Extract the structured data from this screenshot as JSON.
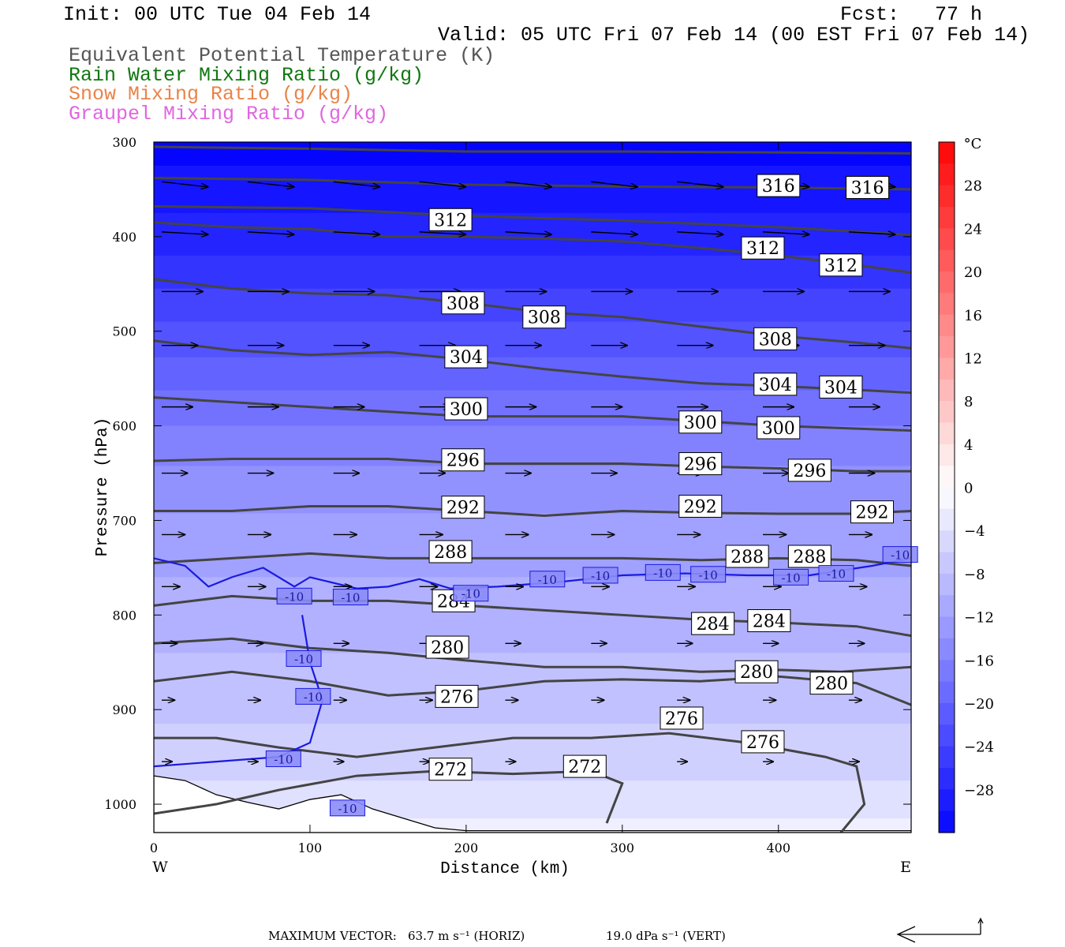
{
  "header": {
    "init": "Init: 00 UTC Tue 04 Feb 14",
    "fcst": "Fcst:   77 h",
    "valid": "Valid: 05 UTC Fri 07 Feb 14 (00 EST Fri 07 Feb 14)",
    "legend": [
      {
        "text": "Equivalent Potential Temperature (K)",
        "color": "#555555"
      },
      {
        "text": "Rain Water Mixing Ratio (g/kg)",
        "color": "#117711"
      },
      {
        "text": "Snow Mixing Ratio (g/kg)",
        "color": "#e8844a"
      },
      {
        "text": "Graupel Mixing Ratio (g/kg)",
        "color": "#e066e0"
      }
    ]
  },
  "chart_data": {
    "type": "heatmap",
    "xlabel": "Distance (km)",
    "ylabel": "Pressure (hPa)",
    "xlim": [
      0,
      485
    ],
    "ylim": [
      1030,
      300
    ],
    "x_ticks": [
      0,
      100,
      200,
      300,
      400
    ],
    "y_ticks": [
      300,
      400,
      500,
      600,
      700,
      800,
      900,
      1000
    ],
    "x_end_labels": {
      "left": "W",
      "right": "E"
    },
    "colorbar": {
      "unit": "°C",
      "tick_labels": [
        28,
        24,
        20,
        16,
        12,
        8,
        4,
        0,
        -4,
        -8,
        -12,
        -16,
        -20,
        -24,
        -28
      ],
      "range": [
        -32,
        32
      ],
      "step": 2
    },
    "temperature_shading": [
      {
        "p": 300,
        "t": -32
      },
      {
        "p": 350,
        "t": -30
      },
      {
        "p": 400,
        "t": -28
      },
      {
        "p": 440,
        "t": -26
      },
      {
        "p": 470,
        "t": -24
      },
      {
        "p": 510,
        "t": -22
      },
      {
        "p": 545,
        "t": -20
      },
      {
        "p": 580,
        "t": -18
      },
      {
        "p": 620,
        "t": -16
      },
      {
        "p": 665,
        "t": -14
      },
      {
        "p": 720,
        "t": -12
      },
      {
        "p": 800,
        "t": -10
      },
      {
        "p": 880,
        "t": -8
      },
      {
        "p": 950,
        "t": -6
      },
      {
        "p": 1000,
        "t": -4
      },
      {
        "p": 1030,
        "t": -2
      }
    ],
    "theta_e_contours": [
      {
        "value": 272,
        "points": [
          [
            0,
            1010
          ],
          [
            40,
            1000
          ],
          [
            80,
            985
          ],
          [
            130,
            970
          ],
          [
            180,
            965
          ],
          [
            230,
            968
          ],
          [
            280,
            965
          ],
          [
            300,
            978
          ],
          [
            290,
            1020
          ]
        ]
      },
      {
        "value": 276,
        "points": [
          [
            0,
            930
          ],
          [
            40,
            930
          ],
          [
            80,
            940
          ],
          [
            130,
            950
          ],
          [
            180,
            940
          ],
          [
            230,
            930
          ],
          [
            280,
            930
          ],
          [
            330,
            925
          ],
          [
            380,
            935
          ],
          [
            430,
            950
          ],
          [
            450,
            960
          ],
          [
            455,
            1000
          ],
          [
            440,
            1030
          ]
        ]
      },
      {
        "value": 280,
        "points": [
          [
            0,
            870
          ],
          [
            50,
            860
          ],
          [
            100,
            870
          ],
          [
            150,
            885
          ],
          [
            200,
            880
          ],
          [
            250,
            870
          ],
          [
            300,
            868
          ],
          [
            350,
            870
          ],
          [
            400,
            865
          ],
          [
            450,
            872
          ],
          [
            485,
            895
          ]
        ]
      },
      {
        "value": 284,
        "points": [
          [
            0,
            830
          ],
          [
            50,
            825
          ],
          [
            100,
            835
          ],
          [
            150,
            840
          ],
          [
            200,
            848
          ],
          [
            250,
            855
          ],
          [
            300,
            855
          ],
          [
            350,
            860
          ],
          [
            400,
            858
          ],
          [
            440,
            860
          ],
          [
            485,
            855
          ]
        ]
      },
      {
        "value": 288,
        "points": [
          [
            0,
            790
          ],
          [
            50,
            780
          ],
          [
            100,
            785
          ],
          [
            150,
            785
          ],
          [
            200,
            790
          ],
          [
            250,
            795
          ],
          [
            300,
            800
          ],
          [
            350,
            805
          ],
          [
            400,
            808
          ],
          [
            450,
            812
          ],
          [
            485,
            822
          ]
        ]
      },
      {
        "value": 292,
        "points": [
          [
            0,
            745
          ],
          [
            50,
            740
          ],
          [
            100,
            735
          ],
          [
            150,
            740
          ],
          [
            200,
            740
          ],
          [
            250,
            740
          ],
          [
            300,
            740
          ],
          [
            350,
            742
          ],
          [
            400,
            740
          ],
          [
            450,
            742
          ],
          [
            485,
            748
          ]
        ]
      },
      {
        "value": 296,
        "points": [
          [
            0,
            690
          ],
          [
            50,
            690
          ],
          [
            100,
            685
          ],
          [
            150,
            685
          ],
          [
            200,
            690
          ],
          [
            250,
            695
          ],
          [
            300,
            690
          ],
          [
            350,
            692
          ],
          [
            400,
            693
          ],
          [
            450,
            693
          ],
          [
            485,
            690
          ]
        ]
      },
      {
        "value": 300,
        "points": [
          [
            0,
            637
          ],
          [
            50,
            635
          ],
          [
            100,
            635
          ],
          [
            150,
            635
          ],
          [
            200,
            640
          ],
          [
            250,
            640
          ],
          [
            300,
            640
          ],
          [
            350,
            643
          ],
          [
            400,
            645
          ],
          [
            450,
            648
          ],
          [
            485,
            648
          ]
        ]
      },
      {
        "value": 304,
        "points": [
          [
            0,
            570
          ],
          [
            50,
            575
          ],
          [
            100,
            580
          ],
          [
            150,
            585
          ],
          [
            200,
            590
          ],
          [
            250,
            590
          ],
          [
            300,
            590
          ],
          [
            350,
            595
          ],
          [
            400,
            600
          ],
          [
            450,
            603
          ],
          [
            485,
            605
          ]
        ]
      },
      {
        "value": 308,
        "points": [
          [
            0,
            510
          ],
          [
            50,
            520
          ],
          [
            100,
            525
          ],
          [
            150,
            522
          ],
          [
            200,
            530
          ],
          [
            250,
            540
          ],
          [
            300,
            548
          ],
          [
            350,
            555
          ],
          [
            400,
            558
          ],
          [
            450,
            562
          ],
          [
            485,
            565
          ]
        ]
      },
      {
        "value": 312,
        "points": [
          [
            0,
            445
          ],
          [
            50,
            455
          ],
          [
            100,
            460
          ],
          [
            150,
            462
          ],
          [
            200,
            470
          ],
          [
            250,
            480
          ],
          [
            300,
            485
          ],
          [
            350,
            495
          ],
          [
            400,
            505
          ],
          [
            450,
            512
          ],
          [
            485,
            518
          ]
        ]
      },
      {
        "value": 316,
        "points": [
          [
            0,
            385
          ],
          [
            50,
            390
          ],
          [
            100,
            392
          ],
          [
            150,
            400
          ],
          [
            200,
            400
          ],
          [
            250,
            402
          ],
          [
            300,
            405
          ],
          [
            350,
            412
          ],
          [
            400,
            420
          ],
          [
            450,
            430
          ],
          [
            485,
            438
          ]
        ]
      },
      {
        "value": "",
        "points": [
          [
            0,
            368
          ],
          [
            100,
            370
          ],
          [
            200,
            378
          ],
          [
            300,
            383
          ],
          [
            400,
            390
          ],
          [
            485,
            398
          ]
        ]
      },
      {
        "value": "",
        "points": [
          [
            0,
            338
          ],
          [
            100,
            340
          ],
          [
            200,
            345
          ],
          [
            300,
            347
          ],
          [
            400,
            348
          ],
          [
            485,
            350
          ]
        ]
      },
      {
        "value": "",
        "points": [
          [
            0,
            305
          ],
          [
            100,
            307
          ],
          [
            200,
            310
          ],
          [
            300,
            310
          ],
          [
            400,
            311
          ],
          [
            485,
            312
          ]
        ]
      }
    ],
    "theta_e_labels": [
      {
        "text": "316",
        "x": 400,
        "p": 346
      },
      {
        "text": "316",
        "x": 457,
        "p": 348
      },
      {
        "text": "312",
        "x": 190,
        "p": 382
      },
      {
        "text": "312",
        "x": 390,
        "p": 412
      },
      {
        "text": "312",
        "x": 440,
        "p": 430
      },
      {
        "text": "308",
        "x": 198,
        "p": 470
      },
      {
        "text": "308",
        "x": 250,
        "p": 485
      },
      {
        "text": "308",
        "x": 398,
        "p": 508
      },
      {
        "text": "304",
        "x": 200,
        "p": 527
      },
      {
        "text": "304",
        "x": 398,
        "p": 556
      },
      {
        "text": "304",
        "x": 440,
        "p": 559
      },
      {
        "text": "300",
        "x": 200,
        "p": 582
      },
      {
        "text": "300",
        "x": 350,
        "p": 596
      },
      {
        "text": "300",
        "x": 400,
        "p": 602
      },
      {
        "text": "296",
        "x": 198,
        "p": 636
      },
      {
        "text": "296",
        "x": 350,
        "p": 640
      },
      {
        "text": "296",
        "x": 420,
        "p": 647
      },
      {
        "text": "292",
        "x": 198,
        "p": 686
      },
      {
        "text": "292",
        "x": 350,
        "p": 685
      },
      {
        "text": "292",
        "x": 460,
        "p": 691
      },
      {
        "text": "288",
        "x": 190,
        "p": 733
      },
      {
        "text": "288",
        "x": 380,
        "p": 738
      },
      {
        "text": "288",
        "x": 420,
        "p": 738
      },
      {
        "text": "284",
        "x": 192,
        "p": 785
      },
      {
        "text": "284",
        "x": 358,
        "p": 809
      },
      {
        "text": "284",
        "x": 394,
        "p": 806
      },
      {
        "text": "280",
        "x": 188,
        "p": 834
      },
      {
        "text": "280",
        "x": 386,
        "p": 860
      },
      {
        "text": "280",
        "x": 434,
        "p": 872
      },
      {
        "text": "276",
        "x": 194,
        "p": 886
      },
      {
        "text": "276",
        "x": 338,
        "p": 909
      },
      {
        "text": "276",
        "x": 390,
        "p": 934
      },
      {
        "text": "272",
        "x": 190,
        "p": 963
      },
      {
        "text": "272",
        "x": 276,
        "p": 960
      }
    ],
    "isotherm_labels": [
      {
        "text": "-10",
        "x": 90,
        "p": 780
      },
      {
        "text": "-10",
        "x": 126,
        "p": 781
      },
      {
        "text": "-10",
        "x": 203,
        "p": 777
      },
      {
        "text": "-10",
        "x": 252,
        "p": 762
      },
      {
        "text": "-10",
        "x": 286,
        "p": 758
      },
      {
        "text": "-10",
        "x": 326,
        "p": 755
      },
      {
        "text": "-10",
        "x": 355,
        "p": 757
      },
      {
        "text": "-10",
        "x": 408,
        "p": 760
      },
      {
        "text": "-10",
        "x": 437,
        "p": 756
      },
      {
        "text": "-10",
        "x": 478,
        "p": 736
      },
      {
        "text": "-10",
        "x": 96,
        "p": 846
      },
      {
        "text": "-10",
        "x": 102,
        "p": 886
      },
      {
        "text": "-10",
        "x": 83,
        "p": 952
      },
      {
        "text": "-10",
        "x": 124,
        "p": 1004
      }
    ],
    "wind_vectors": [
      {
        "p": 342,
        "x": [
          0,
          55,
          110,
          165,
          220,
          275,
          330,
          385,
          440
        ],
        "u": 9,
        "w": -1
      },
      {
        "p": 395,
        "x": [
          0,
          55,
          110,
          165,
          220,
          275,
          330,
          385,
          440
        ],
        "u": 9,
        "w": -0.5
      },
      {
        "p": 458,
        "x": [
          0,
          55,
          110,
          165,
          220,
          275,
          330,
          385,
          440
        ],
        "u": 8,
        "w": 0
      },
      {
        "p": 515,
        "x": [
          0,
          55,
          110,
          165,
          220,
          275,
          330,
          385,
          440
        ],
        "u": 7,
        "w": 0
      },
      {
        "p": 580,
        "x": [
          0,
          55,
          110,
          165,
          220,
          275,
          330,
          385,
          440
        ],
        "u": 6,
        "w": 0
      },
      {
        "p": 650,
        "x": [
          0,
          55,
          110,
          165,
          220,
          275,
          330,
          385,
          440
        ],
        "u": 5,
        "w": 0
      },
      {
        "p": 715,
        "x": [
          0,
          55,
          110,
          165,
          220,
          275,
          330,
          385,
          440
        ],
        "u": 4.5,
        "w": 0
      },
      {
        "p": 770,
        "x": [
          0,
          55,
          110,
          165,
          220,
          275,
          330,
          385,
          440
        ],
        "u": 3.5,
        "w": 0
      },
      {
        "p": 830,
        "x": [
          0,
          55,
          110,
          165,
          220,
          275,
          330,
          385,
          440
        ],
        "u": 3,
        "w": 0
      },
      {
        "p": 890,
        "x": [
          0,
          55,
          110,
          165,
          220,
          275,
          330,
          385,
          440
        ],
        "u": 2.5,
        "w": 0
      },
      {
        "p": 955,
        "x": [
          0,
          55,
          110,
          165,
          220,
          275,
          330,
          385,
          440
        ],
        "u": 2,
        "w": 0
      }
    ],
    "terrain": [
      [
        0,
        970
      ],
      [
        20,
        975
      ],
      [
        40,
        990
      ],
      [
        60,
        998
      ],
      [
        80,
        1005
      ],
      [
        100,
        995
      ],
      [
        120,
        990
      ],
      [
        140,
        1005
      ],
      [
        160,
        1015
      ],
      [
        180,
        1025
      ],
      [
        200,
        1028
      ],
      [
        485,
        1028
      ]
    ]
  },
  "footer": {
    "max_vector_label": "MAXIMUM VECTOR:",
    "horiz": "63.7 m s⁻¹ (HORIZ)",
    "vert": "19.0 dPa s⁻¹ (VERT)"
  },
  "colors": {
    "contour": "#444444",
    "isotherm": "#1a1ae0",
    "vector": "#000000"
  }
}
